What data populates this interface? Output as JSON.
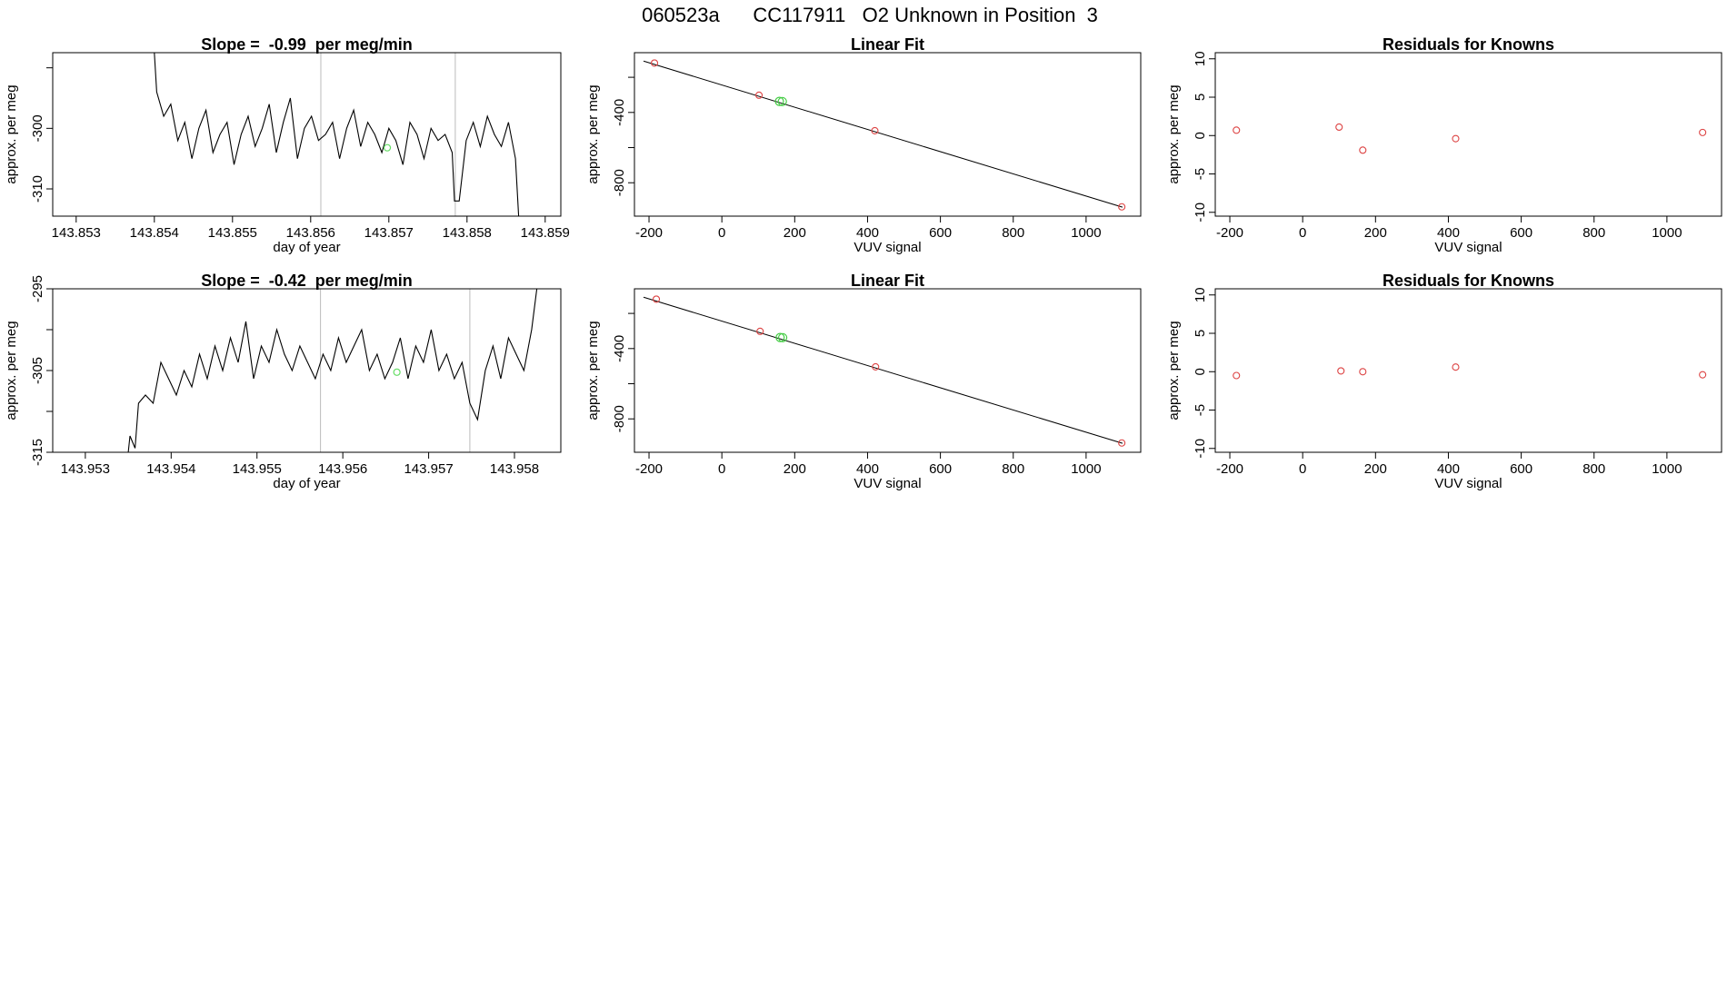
{
  "page_title": "060523a      CC117911   O2 Unknown in Position  3",
  "chart_data": [
    {
      "type": "line",
      "title": "Slope =  -0.99  per meg/min",
      "xlabel": "day of year",
      "ylabel": "approx. per meg",
      "xlim": [
        143.8527,
        143.8592
      ],
      "ylim": [
        -314.5,
        -287.5
      ],
      "xticks": [
        "143.853",
        "143.854",
        "143.855",
        "143.856",
        "143.857",
        "143.858",
        "143.859"
      ],
      "xtick_values": [
        143.853,
        143.854,
        143.855,
        143.856,
        143.857,
        143.858,
        143.859
      ],
      "yticks": [
        "-300",
        "-310"
      ],
      "ytick_values": [
        -290,
        -300,
        -310
      ],
      "vlines": [
        143.85613,
        143.85785
      ],
      "marker": {
        "x": 143.85698,
        "y": -303.2,
        "color": "#66dd66"
      },
      "series": [
        {
          "color": "#000000",
          "x": [
            143.854,
            143.85403,
            143.85412,
            143.85421,
            143.8543,
            143.85439,
            143.85448,
            143.85457,
            143.85466,
            143.85475,
            143.85484,
            143.85493,
            143.85502,
            143.85511,
            143.8552,
            143.85529,
            143.85538,
            143.85547,
            143.85556,
            143.85565,
            143.85574,
            143.85583,
            143.85592,
            143.85601,
            143.8561,
            143.85619,
            143.85628,
            143.85637,
            143.85646,
            143.85655,
            143.85664,
            143.85673,
            143.85682,
            143.85691,
            143.857,
            143.85709,
            143.85718,
            143.85727,
            143.85736,
            143.85745,
            143.85754,
            143.85763,
            143.85772,
            143.85781,
            143.85784,
            143.8579,
            143.85799,
            143.85808,
            143.85817,
            143.85826,
            143.85835,
            143.85844,
            143.85853,
            143.85862,
            143.85866
          ],
          "y": [
            -287.5,
            -294,
            -298,
            -296,
            -302,
            -299,
            -305,
            -300,
            -297,
            -304,
            -301,
            -299,
            -306,
            -301,
            -298,
            -303,
            -300,
            -296,
            -304,
            -299,
            -295,
            -305,
            -300,
            -298,
            -302,
            -301,
            -299,
            -305,
            -300,
            -297,
            -303,
            -299,
            -301,
            -304,
            -300,
            -302,
            -306,
            -299,
            -301,
            -305,
            -300,
            -302,
            -301,
            -304,
            -312,
            -312,
            -302,
            -299,
            -303,
            -298,
            -301,
            -303,
            -299,
            -305,
            -314.5
          ]
        }
      ]
    },
    {
      "type": "scatter",
      "title": "Linear Fit",
      "xlabel": "VUV signal",
      "ylabel": "approx. per meg",
      "xlim": [
        -240,
        1150
      ],
      "ylim": [
        -990,
        -60
      ],
      "xticks": [
        "-200",
        "0",
        "200",
        "400",
        "600",
        "800",
        "1000"
      ],
      "xtick_values": [
        -200,
        0,
        200,
        400,
        600,
        800,
        1000
      ],
      "yticks": [
        "-400",
        "-800"
      ],
      "ytick_values": [
        -200,
        -400,
        -600,
        -800
      ],
      "fit_line": {
        "x": [
          -215,
          1100
        ],
        "y": [
          -108,
          -939
        ]
      },
      "knowns": {
        "color": "#dd4444",
        "x": [
          -185,
          102,
          420,
          1098
        ],
        "y": [
          -119,
          -302,
          -504,
          -937
        ]
      },
      "unknowns": {
        "color": "#44cc44",
        "x": [
          158,
          166
        ],
        "y": [
          -337,
          -338
        ]
      }
    },
    {
      "type": "scatter",
      "title": "Residuals for Knowns",
      "xlabel": "VUV signal",
      "ylabel": "approx. per meg",
      "xlim": [
        -240,
        1150
      ],
      "ylim": [
        -10.5,
        10.8
      ],
      "xticks": [
        "-200",
        "0",
        "200",
        "400",
        "600",
        "800",
        "1000"
      ],
      "xtick_values": [
        -200,
        0,
        200,
        400,
        600,
        800,
        1000
      ],
      "yticks": [
        "10",
        "5",
        "0",
        "-5",
        "-10"
      ],
      "ytick_values": [
        10,
        5,
        0,
        -5,
        -10
      ],
      "points": {
        "color": "#dd4444",
        "x": [
          -182,
          100,
          165,
          420,
          1098
        ],
        "y": [
          0.7,
          1.1,
          -1.9,
          -0.4,
          0.4
        ]
      }
    },
    {
      "type": "line",
      "title": "Slope =  -0.42  per meg/min",
      "xlabel": "day of year",
      "ylabel": "approx. per meg",
      "xlim": [
        143.95262,
        143.95854
      ],
      "ylim": [
        -315,
        -295
      ],
      "xticks": [
        "143.953",
        "143.954",
        "143.955",
        "143.956",
        "143.957",
        "143.958"
      ],
      "xtick_values": [
        143.953,
        143.954,
        143.955,
        143.956,
        143.957,
        143.958
      ],
      "yticks": [
        "-295",
        "-305",
        "-315"
      ],
      "ytick_values": [
        -295,
        -300,
        -305,
        -310,
        -315
      ],
      "vlines": [
        143.95574,
        143.95748
      ],
      "marker": {
        "x": 143.95663,
        "y": -305.2,
        "color": "#66dd66"
      },
      "series": [
        {
          "color": "#000000",
          "x": [
            143.9535,
            143.95352,
            143.95358,
            143.95362,
            143.9537,
            143.95379,
            143.95388,
            143.95397,
            143.95406,
            143.95415,
            143.95424,
            143.95433,
            143.95442,
            143.95451,
            143.9546,
            143.95469,
            143.95478,
            143.95487,
            143.95496,
            143.95505,
            143.95514,
            143.95523,
            143.95532,
            143.95541,
            143.9555,
            143.95559,
            143.95568,
            143.95577,
            143.95586,
            143.95595,
            143.95604,
            143.95613,
            143.95622,
            143.95631,
            143.9564,
            143.95649,
            143.95658,
            143.95667,
            143.95676,
            143.95685,
            143.95694,
            143.95703,
            143.95712,
            143.95721,
            143.9573,
            143.95739,
            143.95748,
            143.95757,
            143.95766,
            143.95775,
            143.95784,
            143.95793,
            143.95802,
            143.95811,
            143.9582,
            143.95826
          ],
          "y": [
            -315,
            -313,
            -314.5,
            -309,
            -308,
            -309,
            -304,
            -306,
            -308,
            -305,
            -307,
            -303,
            -306,
            -302,
            -305,
            -301,
            -304,
            -299,
            -306,
            -302,
            -304,
            -300,
            -303,
            -305,
            -302,
            -304,
            -306,
            -303,
            -305,
            -301,
            -304,
            -302,
            -300,
            -305,
            -303,
            -306,
            -304,
            -301,
            -306,
            -302,
            -304,
            -300,
            -305,
            -303,
            -306,
            -304,
            -309,
            -311,
            -305,
            -302,
            -306,
            -301,
            -303,
            -305,
            -300,
            -295
          ]
        }
      ]
    },
    {
      "type": "scatter",
      "title": "Linear Fit",
      "xlabel": "VUV signal",
      "ylabel": "approx. per meg",
      "xlim": [
        -240,
        1150
      ],
      "ylim": [
        -990,
        -60
      ],
      "xticks": [
        "-200",
        "0",
        "200",
        "400",
        "600",
        "800",
        "1000"
      ],
      "xtick_values": [
        -200,
        0,
        200,
        400,
        600,
        800,
        1000
      ],
      "yticks": [
        "-400",
        "-800"
      ],
      "ytick_values": [
        -200,
        -400,
        -600,
        -800
      ],
      "fit_line": {
        "x": [
          -215,
          1100
        ],
        "y": [
          -108,
          -939
        ]
      },
      "knowns": {
        "color": "#dd4444",
        "x": [
          -180,
          105,
          422,
          1098
        ],
        "y": [
          -119,
          -302,
          -504,
          -937
        ]
      },
      "unknowns": {
        "color": "#44cc44",
        "x": [
          160,
          167
        ],
        "y": [
          -337,
          -338
        ]
      }
    },
    {
      "type": "scatter",
      "title": "Residuals for Knowns",
      "xlabel": "VUV signal",
      "ylabel": "approx. per meg",
      "xlim": [
        -240,
        1150
      ],
      "ylim": [
        -10.5,
        10.8
      ],
      "xticks": [
        "-200",
        "0",
        "200",
        "400",
        "600",
        "800",
        "1000"
      ],
      "xtick_values": [
        -200,
        0,
        200,
        400,
        600,
        800,
        1000
      ],
      "yticks": [
        "10",
        "5",
        "0",
        "-5",
        "-10"
      ],
      "ytick_values": [
        10,
        5,
        0,
        -5,
        -10
      ],
      "points": {
        "color": "#dd4444",
        "x": [
          -182,
          105,
          165,
          420,
          1098
        ],
        "y": [
          -0.5,
          0.1,
          0.0,
          0.6,
          -0.4
        ]
      }
    }
  ]
}
